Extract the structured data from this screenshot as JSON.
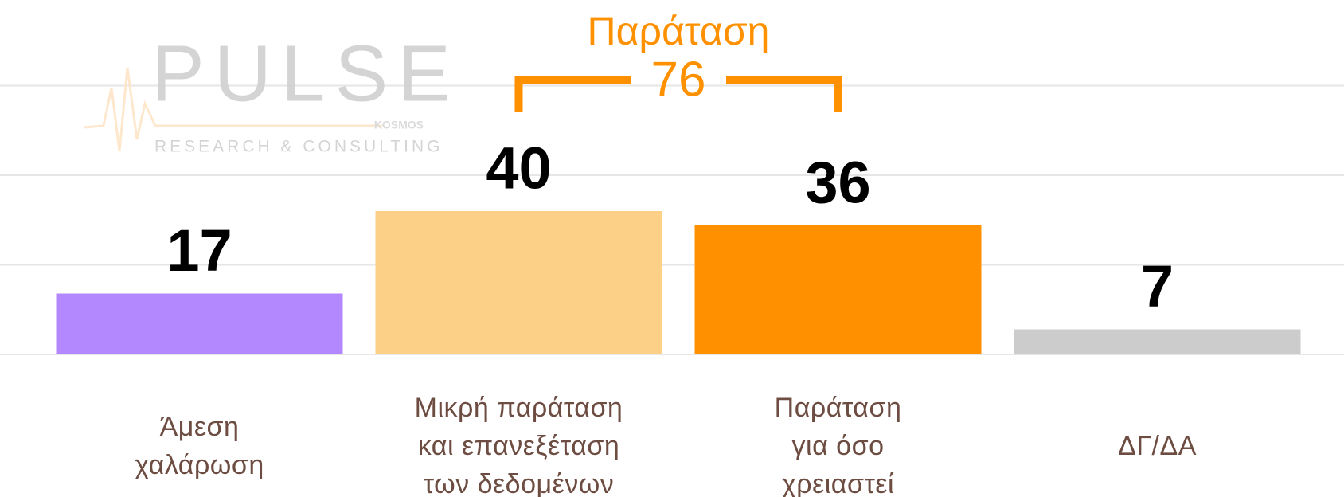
{
  "chart_data": {
    "type": "bar",
    "categories": [
      "Άμεση\nχαλάρωση",
      "Μικρή παράταση\nκαι επανεξέταση\nτων δεδομένων",
      "Παράταση\nγια όσο\nχρειαστεί",
      "ΔΓ/ΔΑ"
    ],
    "values": [
      17,
      40,
      36,
      7
    ],
    "colors": [
      "#b388ff",
      "#fdd087",
      "#ff9100",
      "#cccccc"
    ],
    "ylim": [
      0,
      90
    ],
    "yticks": [
      0,
      25,
      50,
      75
    ],
    "grid": true,
    "annotation": {
      "label": "Παράταση",
      "value": 76,
      "color": "#ff9100"
    },
    "logo": {
      "name": "PULSE",
      "sub": "KOSMOS",
      "tagline": "RESEARCH & CONSULTING"
    }
  }
}
